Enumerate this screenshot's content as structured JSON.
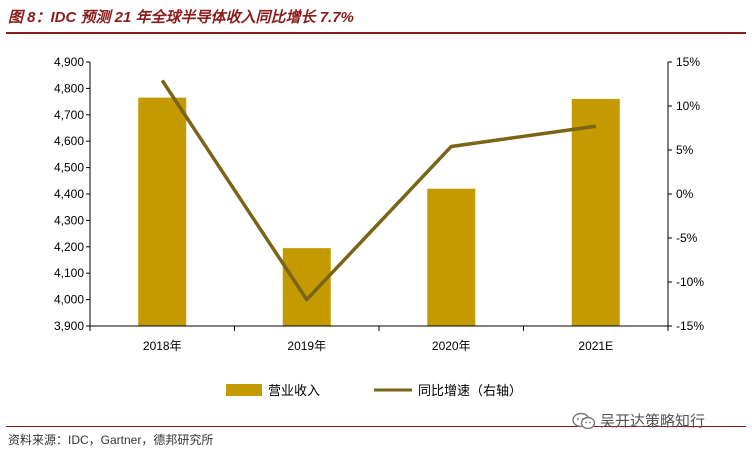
{
  "title": "图 8：IDC 预测 21 年全球半导体收入同比增长 7.7%",
  "source": "资料来源：IDC，Gartner，德邦研究所",
  "watermark": "吴开达策略知行",
  "colors": {
    "bar": "#c49a00",
    "line": "#7a6418",
    "title": "#8a1c1c"
  },
  "chart_data": {
    "type": "bar",
    "categories": [
      "2018年",
      "2019年",
      "2020年",
      "2021E"
    ],
    "series": [
      {
        "name": "营业收入",
        "type": "bar",
        "axis": "left",
        "values": [
          4765,
          4195,
          4420,
          4760
        ]
      },
      {
        "name": "同比增速（右轴）",
        "type": "line",
        "axis": "right",
        "values": [
          12.9,
          -12.0,
          5.4,
          7.7
        ]
      }
    ],
    "ylim": [
      3900,
      4900
    ],
    "yticks": [
      "3,900",
      "4,000",
      "4,100",
      "4,200",
      "4,300",
      "4,400",
      "4,500",
      "4,600",
      "4,700",
      "4,800",
      "4,900"
    ],
    "y2lim": [
      -15,
      15
    ],
    "y2ticks": [
      "-15%",
      "-10%",
      "-5%",
      "0%",
      "5%",
      "10%",
      "15%"
    ],
    "legend": "bottom",
    "grid": false
  }
}
